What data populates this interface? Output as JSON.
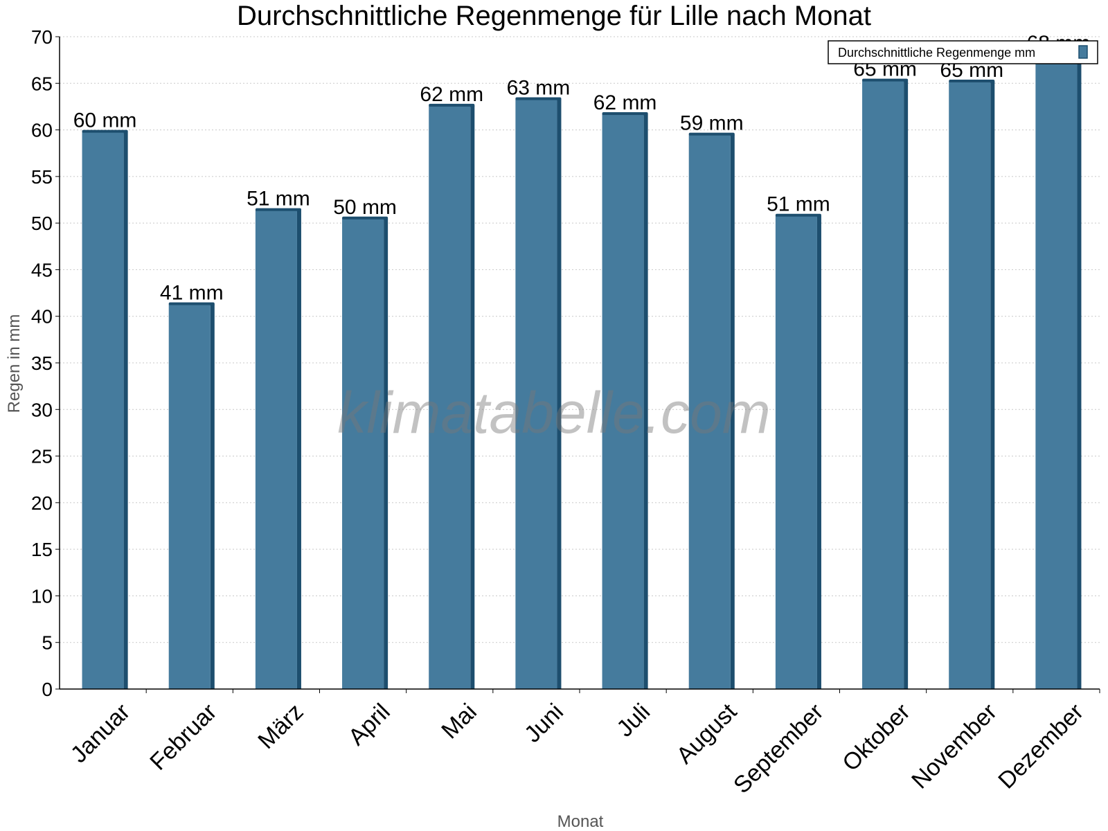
{
  "chart_data": {
    "type": "bar",
    "title": "Durchschnittliche Regenmenge für Lille nach Monat",
    "xlabel": "Monat",
    "ylabel": "Regen in mm",
    "ylim": [
      0,
      70
    ],
    "ytick_step": 5,
    "yticks": [
      "0",
      "5",
      "10",
      "15",
      "20",
      "25",
      "30",
      "35",
      "40",
      "45",
      "50",
      "55",
      "60",
      "65",
      "70"
    ],
    "grid": true,
    "legend_position": "top-right",
    "categories": [
      "Januar",
      "Februar",
      "März",
      "April",
      "Mai",
      "Juni",
      "Juli",
      "August",
      "September",
      "Oktober",
      "November",
      "Dezember"
    ],
    "series": [
      {
        "name": "Durchschnittliche Regenmenge mm",
        "values": [
          59.7,
          41.2,
          51.3,
          50.4,
          62.5,
          63.2,
          61.6,
          59.4,
          50.7,
          65.2,
          65.1,
          68.0
        ],
        "labels": [
          "60 mm",
          "41 mm",
          "51 mm",
          "50 mm",
          "62 mm",
          "63 mm",
          "62 mm",
          "59 mm",
          "51 mm",
          "65 mm",
          "65 mm",
          "68 mm"
        ]
      }
    ],
    "colors": {
      "bar_front": "#457b9d",
      "bar_side": "#1d4e6e",
      "bar_top": "#1d4e6e",
      "grid": "#c8c8c8",
      "axis": "#000000"
    },
    "watermark": "klimatabelle.com"
  }
}
